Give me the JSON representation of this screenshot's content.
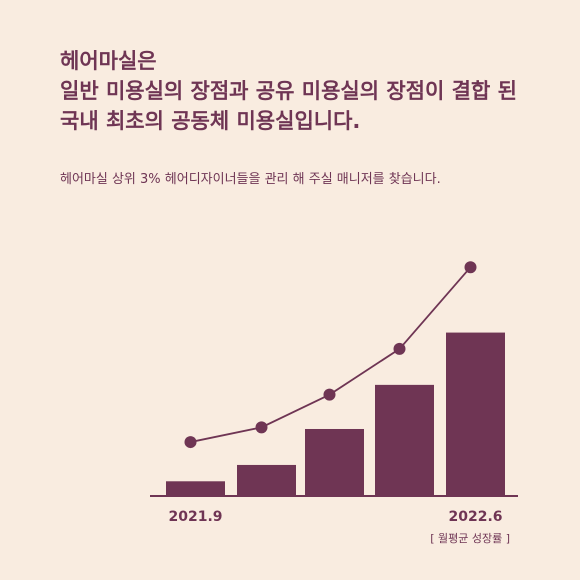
{
  "headline": {
    "line1": "헤어마실은",
    "line2": "일반 미용실의 장점과 공유 미용실의 장점이 결합 된",
    "line3": "국내 최초의 공동체 미용실입니다."
  },
  "subtitle": "헤어마실 상위 3% 헤어디자이너들을 관리 해 주실 매니저를 찾습니다.",
  "chart_note": "[ 월평균 성장률 ]",
  "colors": {
    "accent": "#6f3554",
    "background": "#f9ece0"
  },
  "chart_data": {
    "type": "bar",
    "categories": [
      "2021.9",
      "",
      "",
      "",
      "2022.6"
    ],
    "series": [
      {
        "type": "bar",
        "values": [
          0.09,
          0.19,
          0.41,
          0.68,
          1.0
        ]
      },
      {
        "type": "line",
        "values": [
          0.33,
          0.42,
          0.62,
          0.9,
          1.4
        ]
      }
    ],
    "ylim": [
      0,
      1.75
    ],
    "grid": false,
    "legend": "none"
  }
}
